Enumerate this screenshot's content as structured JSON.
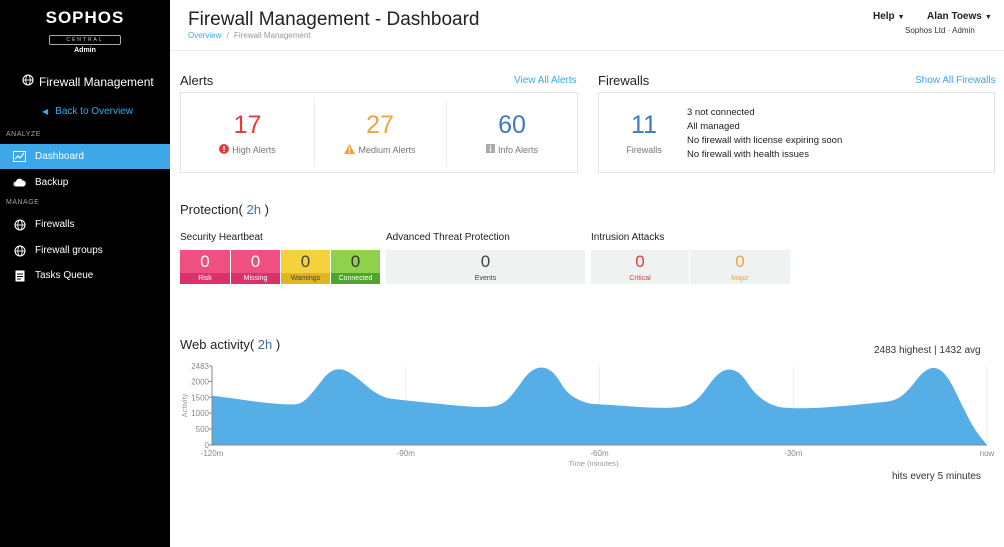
{
  "sidebar": {
    "brand": "SOPHOS",
    "brand_sub": "CENTRAL",
    "brand_role": "Admin",
    "app_title": "Firewall Management",
    "back_label": "Back to Overview",
    "section_analyze": "ANALYZE",
    "section_manage": "MANAGE",
    "items": [
      {
        "label": "Dashboard",
        "icon": "chart-icon",
        "active": true
      },
      {
        "label": "Backup",
        "icon": "cloud-icon",
        "active": false
      },
      {
        "label": "Firewalls",
        "icon": "globe-icon",
        "active": false
      },
      {
        "label": "Firewall groups",
        "icon": "globe-icon",
        "active": false
      },
      {
        "label": "Tasks Queue",
        "icon": "document-icon",
        "active": false
      }
    ]
  },
  "header": {
    "title": "Firewall Management - Dashboard",
    "breadcrumb": [
      "Overview",
      "/",
      "Firewall Management"
    ],
    "help": "Help",
    "user": "Alan Toews",
    "org": "Sophos Ltd · Admin"
  },
  "alerts": {
    "title": "Alerts",
    "view_all": "View All Alerts",
    "high": {
      "count": "17",
      "label": "High Alerts",
      "color": "#e23c3c"
    },
    "medium": {
      "count": "27",
      "label": "Medium Alerts",
      "color": "#f0a33a"
    },
    "info": {
      "count": "60",
      "label": "Info Alerts",
      "color": "#3d7abf"
    }
  },
  "firewalls": {
    "title": "Firewalls",
    "show_all": "Show All Firewalls",
    "count": "11",
    "label": "Firewalls",
    "status": [
      "3 not connected",
      "All managed",
      "No firewall with license expiring soon",
      "No firewall with health issues"
    ]
  },
  "protection": {
    "title": "Protection(",
    "period": " 2h ",
    "title_end": ")",
    "heartbeat": {
      "title": "Security Heartbeat",
      "tiles": [
        {
          "value": "0",
          "label": "Risk",
          "color": "#f04f82"
        },
        {
          "value": "0",
          "label": "Missing",
          "color": "#f04f82"
        },
        {
          "value": "0",
          "label": "Warnings",
          "color": "#f4d13d"
        },
        {
          "value": "0",
          "label": "Connected",
          "color": "#8fd04d"
        }
      ]
    },
    "atp": {
      "title": "Advanced Threat Protection",
      "value": "0",
      "label": "Events"
    },
    "intrusion": {
      "title": "Intrusion Attacks",
      "critical": {
        "value": "0",
        "label": "Critical",
        "color": "#e23c3c"
      },
      "major": {
        "value": "0",
        "label": "Major",
        "color": "#f0a33a"
      }
    }
  },
  "web_activity": {
    "title": "Web activity(",
    "period": " 2h ",
    "title_end": ")",
    "stats": "2483 highest | 1432 avg",
    "footer": "hits every 5 minutes"
  },
  "colors": {
    "accent": "#3da7e8",
    "chart_fill": "#55aee6"
  },
  "chart_data": {
    "type": "area",
    "title": "",
    "xlabel": "Time (minutes)",
    "ylabel": "Activity",
    "x_ticks": [
      "-120m",
      "-90m",
      "-60m",
      "-30m",
      "now"
    ],
    "y_ticks": [
      "0",
      "500",
      "1000",
      "1500",
      "2000",
      "2483"
    ],
    "ylim": [
      0,
      2483
    ],
    "xlim": [
      -120,
      0
    ],
    "x": [
      -120,
      -117,
      -112,
      -108,
      -106,
      -104,
      -102,
      -100,
      -98,
      -94,
      -90,
      -86,
      -82,
      -78,
      -75,
      -73,
      -71,
      -69,
      -67,
      -65,
      -62,
      -60,
      -57,
      -53,
      -49,
      -46,
      -44,
      -42,
      -40,
      -38,
      -36,
      -33,
      -30,
      -26,
      -21,
      -17,
      -14,
      -12,
      -10,
      -8,
      -6,
      -4,
      -2,
      0
    ],
    "y": [
      1550,
      1470,
      1330,
      1260,
      1300,
      1750,
      2300,
      2420,
      2200,
      1490,
      1400,
      1320,
      1230,
      1180,
      1250,
      1700,
      2300,
      2480,
      2300,
      1600,
      1300,
      1280,
      1240,
      1180,
      1160,
      1240,
      1600,
      2200,
      2420,
      2250,
      1600,
      1200,
      1150,
      1160,
      1250,
      1330,
      1400,
      1750,
      2300,
      2483,
      2150,
      1300,
      500,
      0
    ]
  }
}
